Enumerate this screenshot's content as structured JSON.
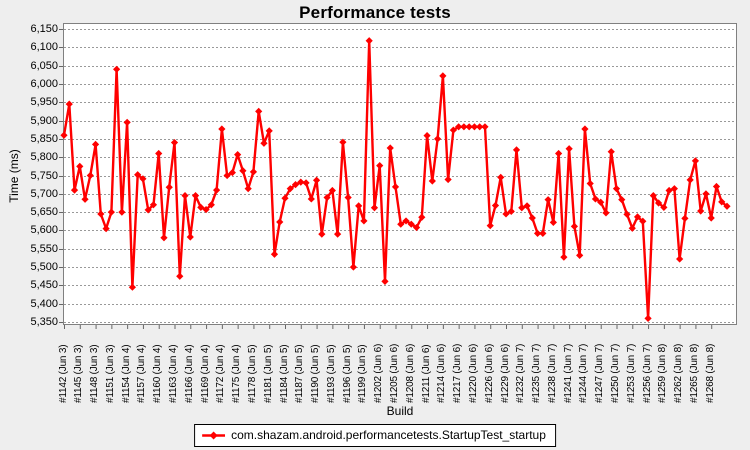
{
  "title": "Performance tests",
  "chart_data": {
    "type": "line",
    "title": "Performance tests",
    "xlabel": "Build",
    "ylabel": "Time (ms)",
    "ylim": [
      5350,
      6150
    ],
    "y_tick_step": 50,
    "y_ticks": [
      "5,350",
      "5,400",
      "5,450",
      "5,500",
      "5,550",
      "5,600",
      "5,650",
      "5,700",
      "5,750",
      "5,800",
      "5,850",
      "5,900",
      "5,950",
      "6,000",
      "6,050",
      "6,100",
      "6,150"
    ],
    "grid": "horizontal-dashed",
    "legend_position": "bottom",
    "x_labels": [
      "#1142 (Jun 3)",
      "#1145 (Jun 3)",
      "#1148 (Jun 3)",
      "#1151 (Jun 3)",
      "#1154 (Jun 4)",
      "#1157 (Jun 4)",
      "#1160 (Jun 4)",
      "#1163 (Jun 4)",
      "#1166 (Jun 4)",
      "#1169 (Jun 4)",
      "#1172 (Jun 4)",
      "#1175 (Jun 4)",
      "#1178 (Jun 5)",
      "#1181 (Jun 5)",
      "#1184 (Jun 5)",
      "#1187 (Jun 5)",
      "#1190 (Jun 5)",
      "#1193 (Jun 5)",
      "#1196 (Jun 5)",
      "#1199 (Jun 5)",
      "#1202 (Jun 6)",
      "#1205 (Jun 6)",
      "#1208 (Jun 6)",
      "#1211 (Jun 6)",
      "#1214 (Jun 6)",
      "#1217 (Jun 6)",
      "#1220 (Jun 6)",
      "#1226 (Jun 6)",
      "#1229 (Jun 6)",
      "#1232 (Jun 7)",
      "#1235 (Jun 7)",
      "#1238 (Jun 7)",
      "#1241 (Jun 7)",
      "#1244 (Jun 7)",
      "#1247 (Jun 7)",
      "#1250 (Jun 7)",
      "#1253 (Jun 7)",
      "#1256 (Jun 7)",
      "#1259 (Jun 8)",
      "#1262 (Jun 8)",
      "#1265 (Jun 8)",
      "#1268 (Jun 8)"
    ],
    "x_label_every": 3,
    "series": [
      {
        "name": "com.shazam.android.performancetests.StartupTest_startup",
        "color": "#ff0000",
        "marker": "diamond",
        "values": [
          5860,
          5945,
          5710,
          5775,
          5685,
          5750,
          5835,
          5645,
          5605,
          5650,
          6040,
          5650,
          5895,
          5445,
          5752,
          5741,
          5656,
          5670,
          5810,
          5580,
          5718,
          5840,
          5475,
          5695,
          5582,
          5695,
          5663,
          5657,
          5670,
          5710,
          5877,
          5750,
          5758,
          5807,
          5763,
          5714,
          5760,
          5925,
          5838,
          5872,
          5535,
          5623,
          5688,
          5714,
          5725,
          5732,
          5730,
          5686,
          5737,
          5590,
          5690,
          5709,
          5590,
          5841,
          5690,
          5500,
          5667,
          5626,
          6118,
          5662,
          5777,
          5461,
          5825,
          5719,
          5617,
          5626,
          5617,
          5608,
          5636,
          5859,
          5735,
          5850,
          6022,
          5739,
          5874,
          5883,
          5883,
          5883,
          5883,
          5883,
          5883,
          5613,
          5668,
          5745,
          5645,
          5652,
          5820,
          5662,
          5667,
          5634,
          5592,
          5592,
          5684,
          5622,
          5810,
          5527,
          5823,
          5611,
          5532,
          5877,
          5728,
          5686,
          5677,
          5648,
          5815,
          5714,
          5684,
          5644,
          5606,
          5637,
          5625,
          5360,
          5695,
          5675,
          5663,
          5709,
          5714,
          5522,
          5633,
          5738,
          5790,
          5653,
          5700,
          5634,
          5720,
          5678,
          5666
        ]
      }
    ]
  },
  "colors": {
    "background": "#eeeeee",
    "plot_background": "#ffffff",
    "gridline": "#999999",
    "plot_border": "#808080",
    "tick": "#666666",
    "series": "#ff0000",
    "text": "#000000"
  }
}
